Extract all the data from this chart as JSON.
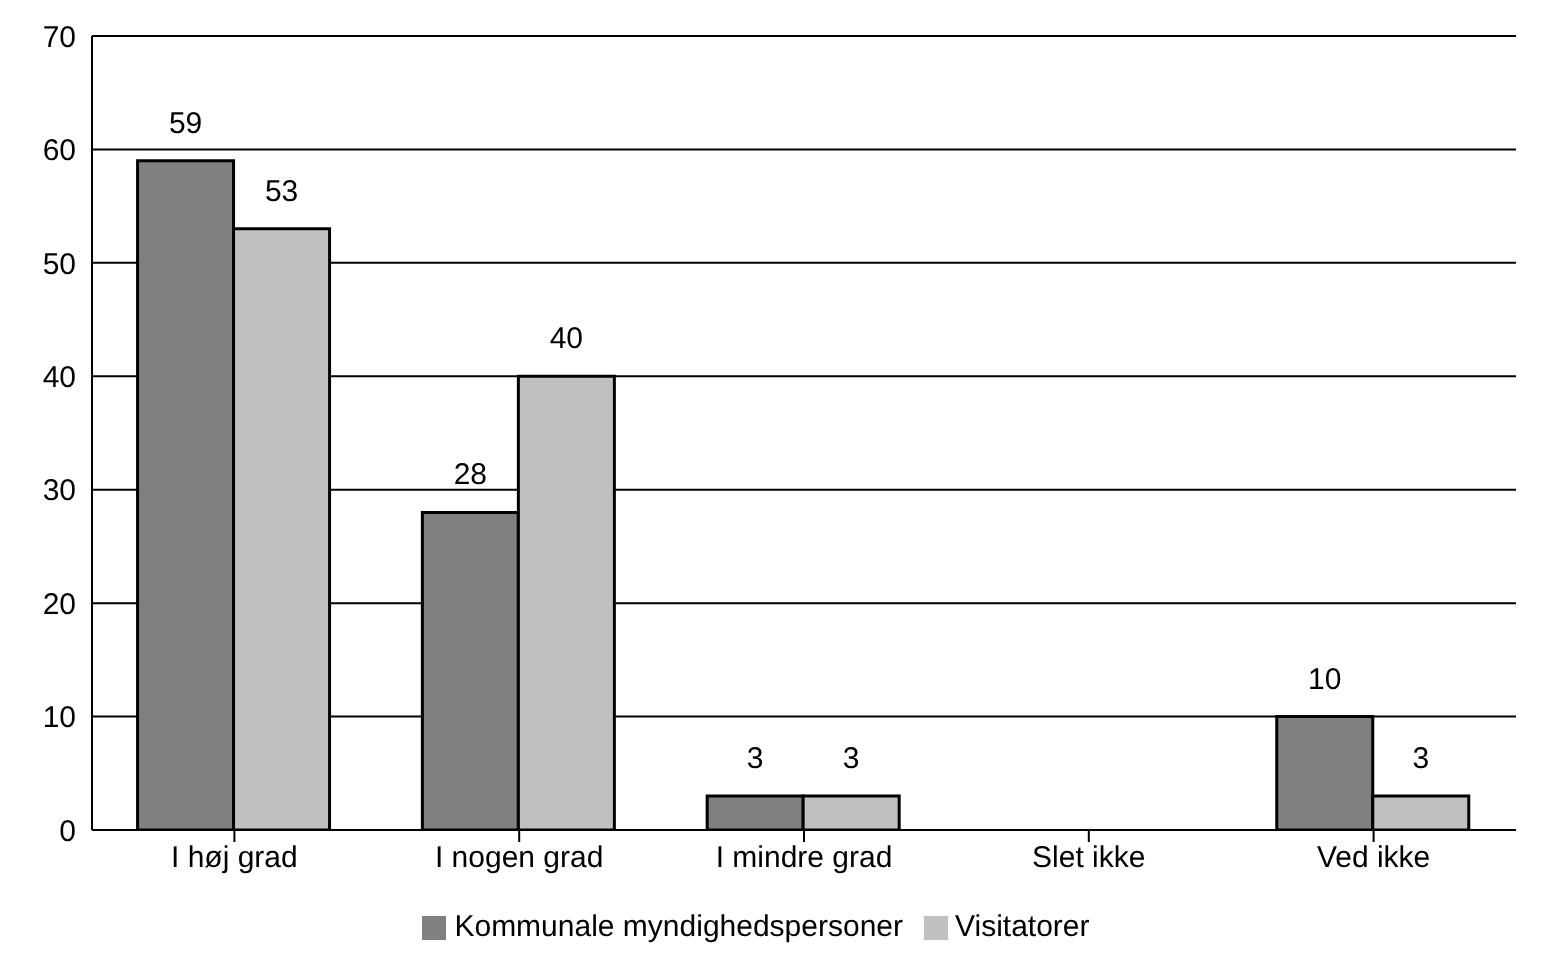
{
  "chart_data": {
    "type": "bar",
    "categories": [
      "I høj grad",
      "I nogen grad",
      "I mindre grad",
      "Slet ikke",
      "Ved ikke"
    ],
    "series": [
      {
        "name": "Kommunale myndighedspersoner",
        "color": "#808080",
        "values": [
          59,
          28,
          3,
          null,
          10
        ]
      },
      {
        "name": "Visitatorer",
        "color": "#c0c0c0",
        "values": [
          53,
          40,
          3,
          null,
          3
        ]
      }
    ],
    "ylim": [
      0,
      70
    ],
    "yticks": [
      0,
      10,
      20,
      30,
      40,
      50,
      60,
      70
    ],
    "grid": "y",
    "legend": "bottom",
    "data_labels": true
  }
}
